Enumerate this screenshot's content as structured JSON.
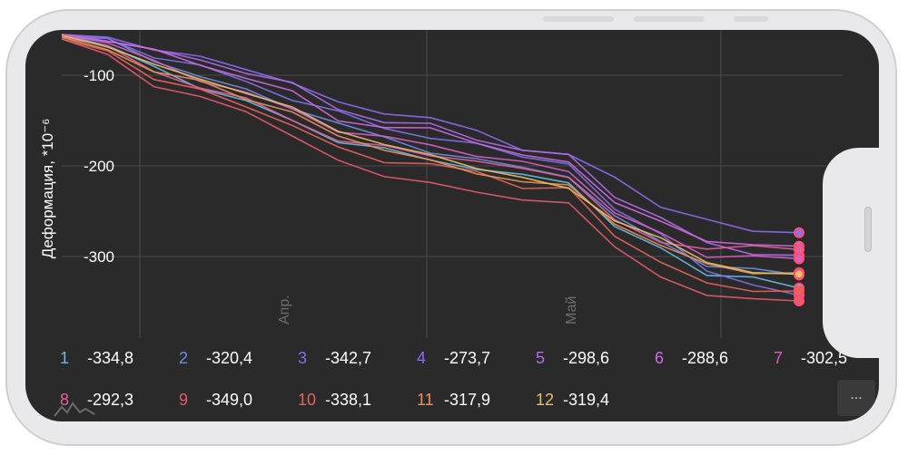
{
  "chart_data": {
    "type": "line",
    "ylabel": "Деформация, *10⁻⁶",
    "y_ticks": [
      "-100",
      "-200",
      "-300"
    ],
    "x_ticks": [
      "Апр.",
      "Май"
    ],
    "ylim": [
      -380,
      -50
    ],
    "x": [
      0,
      5,
      10,
      15,
      20,
      25,
      30,
      35,
      40,
      45,
      50,
      55,
      60,
      65,
      70,
      75,
      80
    ],
    "series": [
      {
        "name": "1",
        "color": "#6cb8e0",
        "values": [
          -55,
          -68,
          -92,
          -112,
          -130,
          -150,
          -172,
          -183,
          -192,
          -203,
          -212,
          -216,
          -268,
          -292,
          -318,
          -325,
          -334.8
        ]
      },
      {
        "name": "2",
        "color": "#6b8fe0",
        "values": [
          -55,
          -62,
          -84,
          -100,
          -118,
          -135,
          -153,
          -170,
          -183,
          -194,
          -202,
          -210,
          -258,
          -282,
          -310,
          -316,
          -320.4
        ]
      },
      {
        "name": "3",
        "color": "#7c72e6",
        "values": [
          -58,
          -62,
          -78,
          -90,
          -108,
          -125,
          -142,
          -158,
          -168,
          -178,
          -188,
          -198,
          -250,
          -272,
          -318,
          -332,
          -342.7
        ]
      },
      {
        "name": "4",
        "color": "#8f6cf0",
        "values": [
          -55,
          -58,
          -70,
          -82,
          -92,
          -108,
          -132,
          -140,
          -148,
          -162,
          -180,
          -190,
          -212,
          -244,
          -262,
          -270,
          -273.7
        ]
      },
      {
        "name": "5",
        "color": "#b06ce8",
        "values": [
          -55,
          -60,
          -72,
          -85,
          -95,
          -110,
          -138,
          -150,
          -156,
          -170,
          -182,
          -190,
          -232,
          -258,
          -286,
          -295,
          -298.6
        ]
      },
      {
        "name": "6",
        "color": "#cf6ae0",
        "values": [
          -55,
          -60,
          -74,
          -88,
          -102,
          -120,
          -148,
          -158,
          -160,
          -172,
          -190,
          -196,
          -238,
          -264,
          -282,
          -286,
          -288.6
        ]
      },
      {
        "name": "7",
        "color": "#d95fc3",
        "values": [
          -55,
          -64,
          -86,
          -104,
          -120,
          -138,
          -160,
          -170,
          -176,
          -188,
          -198,
          -204,
          -252,
          -276,
          -298,
          -301,
          -302.5
        ]
      },
      {
        "name": "8",
        "color": "#e0609c",
        "values": [
          -58,
          -70,
          -96,
          -112,
          -128,
          -148,
          -172,
          -180,
          -186,
          -196,
          -204,
          -210,
          -262,
          -284,
          -290,
          -291,
          -292.3
        ]
      },
      {
        "name": "9",
        "color": "#e65a6e",
        "values": [
          -60,
          -80,
          -110,
          -124,
          -142,
          -164,
          -196,
          -212,
          -216,
          -232,
          -236,
          -240,
          -292,
          -320,
          -344,
          -348,
          -349.0
        ]
      },
      {
        "name": "10",
        "color": "#e8645a",
        "values": [
          -60,
          -74,
          -102,
          -118,
          -134,
          -154,
          -182,
          -194,
          -198,
          -208,
          -222,
          -226,
          -278,
          -304,
          -332,
          -337,
          -338.1
        ]
      },
      {
        "name": "11",
        "color": "#e8925a",
        "values": [
          -58,
          -70,
          -96,
          -108,
          -124,
          -142,
          -168,
          -180,
          -196,
          -208,
          -216,
          -224,
          -262,
          -288,
          -310,
          -316,
          -317.9
        ]
      },
      {
        "name": "12",
        "color": "#e8c06a",
        "values": [
          -56,
          -66,
          -90,
          -104,
          -118,
          -138,
          -160,
          -176,
          -190,
          -200,
          -214,
          -226,
          -258,
          -282,
          -306,
          -316,
          -319.4
        ]
      }
    ]
  },
  "legend": [
    {
      "num": "1",
      "value": "-334,8",
      "color": "#6cb8e0"
    },
    {
      "num": "2",
      "value": "-320,4",
      "color": "#6b8fe0"
    },
    {
      "num": "3",
      "value": "-342,7",
      "color": "#7c72e6"
    },
    {
      "num": "4",
      "value": "-273,7",
      "color": "#8f6cf0"
    },
    {
      "num": "5",
      "value": "-298,6",
      "color": "#b06ce8"
    },
    {
      "num": "6",
      "value": "-288,6",
      "color": "#cf6ae0"
    },
    {
      "num": "7",
      "value": "-302,5",
      "color": "#d95fc3"
    },
    {
      "num": "8",
      "value": "-292,3",
      "color": "#e0609c"
    },
    {
      "num": "9",
      "value": "-349,0",
      "color": "#e65a6e"
    },
    {
      "num": "10",
      "value": "-338,1",
      "color": "#e8645a"
    },
    {
      "num": "11",
      "value": "-317,9",
      "color": "#e8925a"
    },
    {
      "num": "12",
      "value": "-319,4",
      "color": "#e8c06a"
    }
  ],
  "more_label": "...",
  "colors": {
    "background": "#2a2a2b",
    "grid": "#4a4a4c",
    "text": "#ffffff",
    "tick_muted": "#6d6d70"
  }
}
